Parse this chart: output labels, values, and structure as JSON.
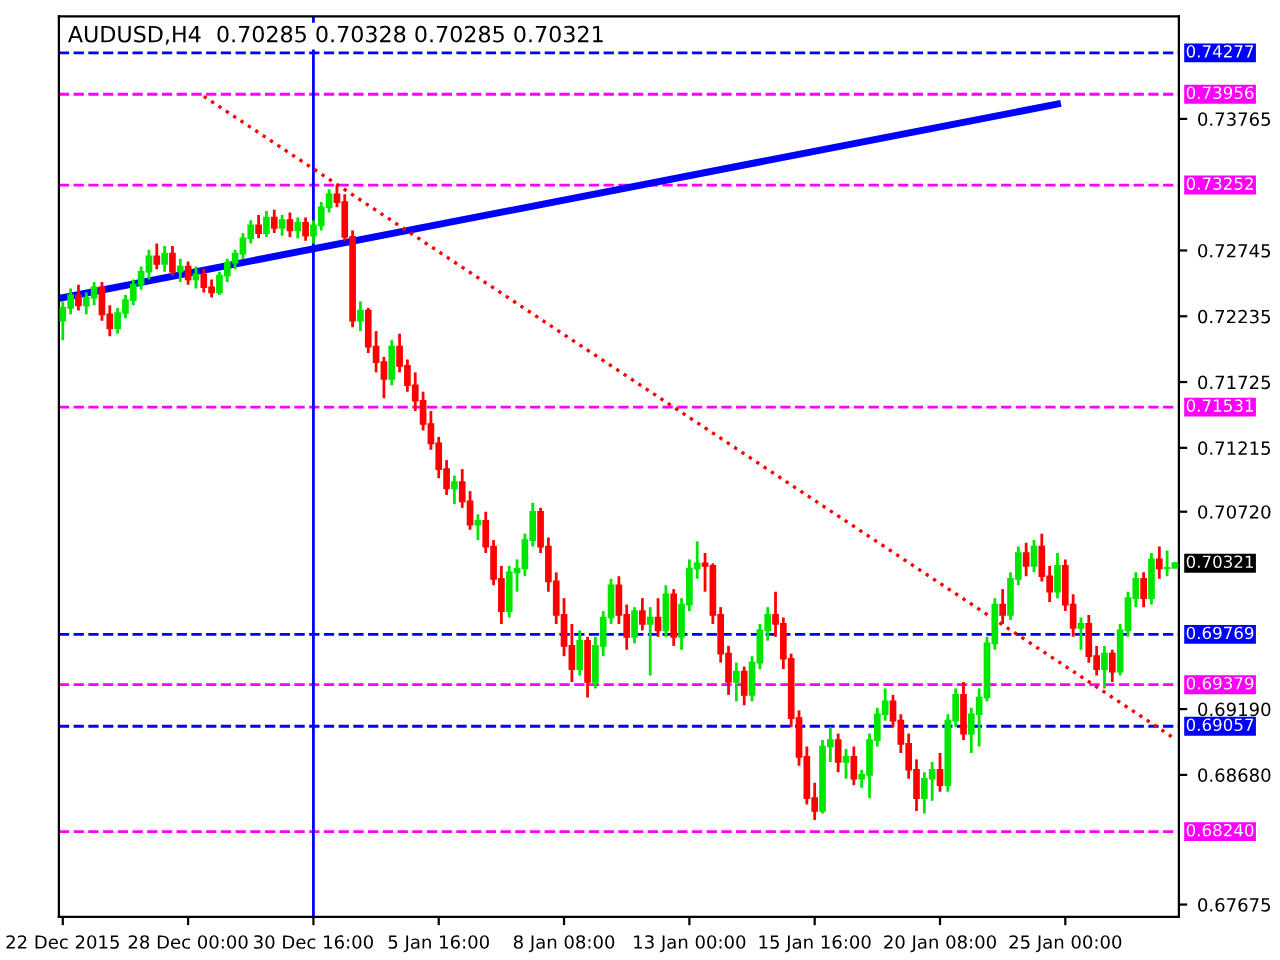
{
  "chart_data": {
    "type": "candlestick",
    "title": "AUDUSD,H4  0.70285 0.70328 0.70285 0.70321",
    "colors": [
      "#00e600",
      "#00e600",
      "#ff0000",
      "#00e600",
      "#00e600",
      "#ff0000",
      "#ff0000",
      "#00e600",
      "#00e600",
      "#00e600",
      "#00e600",
      "#00e600",
      "#ff0000",
      "#00e600",
      "#ff0000",
      "#00e600",
      "#ff0000",
      "#00e600",
      "#ff0000",
      "#ff0000",
      "#00e600",
      "#00e600",
      "#00e600",
      "#00e600",
      "#00e600",
      "#ff0000",
      "#00e600",
      "#ff0000",
      "#00e600",
      "#ff0000",
      "#00e600",
      "#ff0000",
      "#00e600",
      "#00e600",
      "#00e600",
      "#ff0000",
      "#ff0000",
      "#ff0000",
      "#00e600",
      "#ff0000",
      "#ff0000",
      "#ff0000",
      "#00e600",
      "#ff0000",
      "#ff0000",
      "#ff0000",
      "#ff0000",
      "#ff0000",
      "#ff0000",
      "#ff0000",
      "#00e600",
      "#ff0000",
      "#ff0000",
      "#00e600",
      "#ff0000",
      "#ff0000",
      "#ff0000",
      "#00e600",
      "#00e600",
      "#00e600",
      "#00e600",
      "#ff0000",
      "#ff0000",
      "#ff0000",
      "#ff0000",
      "#ff0000",
      "#00e600",
      "#ff0000",
      "#00e600",
      "#00e600",
      "#00e600",
      "#ff0000",
      "#ff0000",
      "#00e600",
      "#ff0000",
      "#00e600",
      "#ff0000",
      "#00e600",
      "#ff0000",
      "#00e600",
      "#00e600",
      "#00e600",
      "#ff0000",
      "#ff0000",
      "#ff0000",
      "#ff0000",
      "#00e600",
      "#ff0000",
      "#00e600",
      "#00e600",
      "#00e600",
      "#ff0000",
      "#ff0000",
      "#ff0000",
      "#ff0000",
      "#ff0000",
      "#ff0000",
      "#00e600",
      "#00e600",
      "#ff0000",
      "#00e600",
      "#ff0000",
      "#00e600",
      "#00e600",
      "#00e600",
      "#00e600",
      "#ff0000",
      "#ff0000",
      "#ff0000",
      "#ff0000",
      "#00e600",
      "#00e600",
      "#ff0000",
      "#00e600",
      "#00e600",
      "#ff0000",
      "#00e600",
      "#00e600",
      "#00e600",
      "#00e600",
      "#ff0000",
      "#00e600",
      "#00e600",
      "#ff0000",
      "#00e600",
      "#ff0000",
      "#ff0000",
      "#00e600",
      "#ff0000",
      "#ff0000",
      "#00e600",
      "#ff0000",
      "#ff0000",
      "#00e600",
      "#ff0000",
      "#00e600",
      "#00e600",
      "#00e600",
      "#ff0000",
      "#00e600",
      "#ff0000",
      "#00e600",
      "#00e600"
    ],
    "categories": [
      "22 Dec 2015",
      null,
      null,
      null,
      null,
      null,
      null,
      null,
      null,
      null,
      null,
      null,
      null,
      null,
      null,
      null,
      "28 Dec 00:00",
      null,
      null,
      null,
      null,
      null,
      null,
      null,
      null,
      null,
      null,
      null,
      null,
      null,
      null,
      null,
      "30 Dec 16:00",
      null,
      null,
      null,
      null,
      null,
      null,
      null,
      null,
      null,
      null,
      null,
      null,
      null,
      null,
      null,
      "5 Jan 16:00",
      null,
      null,
      null,
      null,
      null,
      null,
      null,
      null,
      null,
      null,
      null,
      null,
      null,
      null,
      null,
      "8 Jan 08:00",
      null,
      null,
      null,
      null,
      null,
      null,
      null,
      null,
      null,
      null,
      null,
      null,
      null,
      null,
      null,
      "13 Jan 00:00",
      null,
      null,
      null,
      null,
      null,
      null,
      null,
      null,
      null,
      null,
      null,
      null,
      null,
      null,
      null,
      "15 Jan 16:00",
      null,
      null,
      null,
      null,
      null,
      null,
      null,
      null,
      null,
      null,
      null,
      null,
      null,
      null,
      null,
      "20 Jan 08:00",
      null,
      null,
      null,
      null,
      null,
      null,
      null,
      null,
      null,
      null,
      null,
      null,
      null,
      null,
      null,
      "25 Jan 00:00",
      null,
      null,
      null,
      null,
      null,
      null,
      null,
      null,
      null,
      null,
      null,
      null,
      null,
      null
    ],
    "annotations": [
      "0.70321"
    ],
    "ohlc": [
      [
        0.722,
        0.7235,
        0.7205,
        0.723
      ],
      [
        0.723,
        0.7245,
        0.7225,
        0.724
      ],
      [
        0.724,
        0.7248,
        0.7228,
        0.7232
      ],
      [
        0.7232,
        0.7242,
        0.7225,
        0.7238
      ],
      [
        0.7238,
        0.725,
        0.7232,
        0.7246
      ],
      [
        0.7246,
        0.725,
        0.722,
        0.7225
      ],
      [
        0.7225,
        0.7232,
        0.7208,
        0.7214
      ],
      [
        0.7214,
        0.723,
        0.721,
        0.7226
      ],
      [
        0.7226,
        0.724,
        0.7222,
        0.7236
      ],
      [
        0.7236,
        0.7252,
        0.7232,
        0.7248
      ],
      [
        0.7248,
        0.7262,
        0.7244,
        0.7258
      ],
      [
        0.7258,
        0.7275,
        0.7252,
        0.727
      ],
      [
        0.727,
        0.728,
        0.726,
        0.7264
      ],
      [
        0.7264,
        0.7278,
        0.7258,
        0.7272
      ],
      [
        0.7272,
        0.7278,
        0.7255,
        0.7258
      ],
      [
        0.7258,
        0.7268,
        0.725,
        0.7262
      ],
      [
        0.7262,
        0.7266,
        0.7248,
        0.7252
      ],
      [
        0.7252,
        0.7262,
        0.7245,
        0.7256
      ],
      [
        0.7256,
        0.726,
        0.7242,
        0.7246
      ],
      [
        0.7246,
        0.7252,
        0.7238,
        0.7242
      ],
      [
        0.7242,
        0.7258,
        0.724,
        0.7255
      ],
      [
        0.7255,
        0.7268,
        0.725,
        0.7265
      ],
      [
        0.7265,
        0.7275,
        0.726,
        0.7272
      ],
      [
        0.7272,
        0.7288,
        0.7268,
        0.7284
      ],
      [
        0.7284,
        0.7298,
        0.728,
        0.7294
      ],
      [
        0.7294,
        0.7302,
        0.7284,
        0.7288
      ],
      [
        0.7288,
        0.7305,
        0.7285,
        0.73
      ],
      [
        0.73,
        0.7306,
        0.7288,
        0.7292
      ],
      [
        0.7292,
        0.7302,
        0.7286,
        0.7298
      ],
      [
        0.7298,
        0.7304,
        0.7285,
        0.729
      ],
      [
        0.729,
        0.73,
        0.7284,
        0.7296
      ],
      [
        0.7296,
        0.73,
        0.7282,
        0.7286
      ],
      [
        0.7286,
        0.7298,
        0.728,
        0.7294
      ],
      [
        0.7294,
        0.7312,
        0.729,
        0.7308
      ],
      [
        0.7308,
        0.7322,
        0.7304,
        0.7318
      ],
      [
        0.7318,
        0.7325,
        0.7308,
        0.7312
      ],
      [
        0.7312,
        0.7318,
        0.7282,
        0.7285
      ],
      [
        0.7285,
        0.729,
        0.7215,
        0.722
      ],
      [
        0.722,
        0.7235,
        0.7212,
        0.7228
      ],
      [
        0.7228,
        0.723,
        0.7195,
        0.72
      ],
      [
        0.72,
        0.7212,
        0.718,
        0.7188
      ],
      [
        0.7188,
        0.7192,
        0.716,
        0.7175
      ],
      [
        0.7175,
        0.7205,
        0.717,
        0.72
      ],
      [
        0.72,
        0.721,
        0.718,
        0.7185
      ],
      [
        0.7185,
        0.719,
        0.7165,
        0.717
      ],
      [
        0.717,
        0.718,
        0.715,
        0.7158
      ],
      [
        0.7158,
        0.7165,
        0.7135,
        0.714
      ],
      [
        0.714,
        0.715,
        0.712,
        0.7125
      ],
      [
        0.7125,
        0.713,
        0.7098,
        0.7105
      ],
      [
        0.7105,
        0.7112,
        0.7085,
        0.709
      ],
      [
        0.709,
        0.71,
        0.7078,
        0.7095
      ],
      [
        0.7095,
        0.7105,
        0.7075,
        0.708
      ],
      [
        0.708,
        0.7088,
        0.7058,
        0.7062
      ],
      [
        0.7062,
        0.707,
        0.705,
        0.7065
      ],
      [
        0.7065,
        0.7072,
        0.704,
        0.7045
      ],
      [
        0.7045,
        0.705,
        0.7015,
        0.702
      ],
      [
        0.702,
        0.703,
        0.6985,
        0.6995
      ],
      [
        0.6995,
        0.703,
        0.699,
        0.7025
      ],
      [
        0.7025,
        0.7035,
        0.701,
        0.7028
      ],
      [
        0.7028,
        0.7055,
        0.7022,
        0.705
      ],
      [
        0.705,
        0.7079,
        0.7045,
        0.7072
      ],
      [
        0.7072,
        0.7075,
        0.704,
        0.7045
      ],
      [
        0.7045,
        0.7052,
        0.701,
        0.7018
      ],
      [
        0.7018,
        0.7025,
        0.6985,
        0.6992
      ],
      [
        0.6992,
        0.7005,
        0.696,
        0.6968
      ],
      [
        0.6968,
        0.6985,
        0.694,
        0.695
      ],
      [
        0.695,
        0.698,
        0.6945,
        0.6972
      ],
      [
        0.6972,
        0.6975,
        0.6928,
        0.694
      ],
      [
        0.694,
        0.6975,
        0.6935,
        0.6968
      ],
      [
        0.6968,
        0.6995,
        0.696,
        0.699
      ],
      [
        0.699,
        0.702,
        0.6985,
        0.7015
      ],
      [
        0.7015,
        0.7022,
        0.6985,
        0.6992
      ],
      [
        0.6992,
        0.7,
        0.6965,
        0.6975
      ],
      [
        0.6975,
        0.6998,
        0.697,
        0.6995
      ],
      [
        0.6995,
        0.7005,
        0.698,
        0.6985
      ],
      [
        0.6985,
        0.6998,
        0.6945,
        0.699
      ],
      [
        0.699,
        0.7005,
        0.6975,
        0.698
      ],
      [
        0.698,
        0.7015,
        0.6975,
        0.7008
      ],
      [
        0.7008,
        0.7012,
        0.6968,
        0.6975
      ],
      [
        0.6975,
        0.7005,
        0.6965,
        0.7
      ],
      [
        0.7,
        0.7035,
        0.6995,
        0.7028
      ],
      [
        0.7028,
        0.7049,
        0.702,
        0.7032
      ],
      [
        0.7032,
        0.704,
        0.701,
        0.703
      ],
      [
        0.703,
        0.7032,
        0.6985,
        0.6992
      ],
      [
        0.6992,
        0.6998,
        0.6955,
        0.6962
      ],
      [
        0.6962,
        0.6968,
        0.693,
        0.694
      ],
      [
        0.694,
        0.6955,
        0.6925,
        0.6948
      ],
      [
        0.6948,
        0.6952,
        0.6922,
        0.693
      ],
      [
        0.693,
        0.696,
        0.6925,
        0.6955
      ],
      [
        0.6955,
        0.6985,
        0.695,
        0.698
      ],
      [
        0.698,
        0.6998,
        0.6972,
        0.6992
      ],
      [
        0.6992,
        0.701,
        0.6975,
        0.6985
      ],
      [
        0.6985,
        0.699,
        0.695,
        0.6958
      ],
      [
        0.6958,
        0.6962,
        0.6905,
        0.6912
      ],
      [
        0.6912,
        0.6918,
        0.6875,
        0.6882
      ],
      [
        0.6882,
        0.689,
        0.6845,
        0.685
      ],
      [
        0.685,
        0.6862,
        0.6833,
        0.684
      ],
      [
        0.684,
        0.6895,
        0.6838,
        0.689
      ],
      [
        0.689,
        0.6905,
        0.6878,
        0.6895
      ],
      [
        0.6895,
        0.69,
        0.687,
        0.6878
      ],
      [
        0.6878,
        0.6888,
        0.6865,
        0.6882
      ],
      [
        0.6882,
        0.689,
        0.686,
        0.6865
      ],
      [
        0.6865,
        0.6872,
        0.6858,
        0.6868
      ],
      [
        0.6868,
        0.69,
        0.685,
        0.6895
      ],
      [
        0.6895,
        0.692,
        0.689,
        0.6915
      ],
      [
        0.6915,
        0.6935,
        0.691,
        0.6925
      ],
      [
        0.6925,
        0.693,
        0.6905,
        0.691
      ],
      [
        0.691,
        0.6915,
        0.6885,
        0.6892
      ],
      [
        0.6892,
        0.69,
        0.6865,
        0.6872
      ],
      [
        0.6872,
        0.688,
        0.684,
        0.685
      ],
      [
        0.685,
        0.687,
        0.6838,
        0.6865
      ],
      [
        0.6865,
        0.6878,
        0.6848,
        0.6872
      ],
      [
        0.6872,
        0.6885,
        0.6855,
        0.686
      ],
      [
        0.686,
        0.6915,
        0.6855,
        0.691
      ],
      [
        0.691,
        0.6935,
        0.6905,
        0.693
      ],
      [
        0.693,
        0.694,
        0.6895,
        0.69
      ],
      [
        0.69,
        0.692,
        0.6885,
        0.6915
      ],
      [
        0.6915,
        0.6935,
        0.689,
        0.6928
      ],
      [
        0.6928,
        0.6975,
        0.6925,
        0.697
      ],
      [
        0.697,
        0.7005,
        0.6965,
        0.7
      ],
      [
        0.7,
        0.7012,
        0.6985,
        0.6992
      ],
      [
        0.6992,
        0.7025,
        0.6988,
        0.702
      ],
      [
        0.702,
        0.7045,
        0.7015,
        0.704
      ],
      [
        0.704,
        0.7048,
        0.7022,
        0.703
      ],
      [
        0.703,
        0.705,
        0.7025,
        0.7045
      ],
      [
        0.7045,
        0.7055,
        0.7018,
        0.7022
      ],
      [
        0.7022,
        0.703,
        0.7002,
        0.701
      ],
      [
        0.701,
        0.704,
        0.7005,
        0.703
      ],
      [
        0.703,
        0.7035,
        0.6995,
        0.7
      ],
      [
        0.7,
        0.7008,
        0.6975,
        0.6982
      ],
      [
        0.6982,
        0.699,
        0.6965,
        0.6985
      ],
      [
        0.6985,
        0.6992,
        0.6955,
        0.696
      ],
      [
        0.696,
        0.6968,
        0.6945,
        0.695
      ],
      [
        0.695,
        0.6968,
        0.6935,
        0.6962
      ],
      [
        0.6962,
        0.6965,
        0.694,
        0.6948
      ],
      [
        0.6948,
        0.6985,
        0.6945,
        0.698
      ],
      [
        0.698,
        0.701,
        0.6975,
        0.7005
      ],
      [
        0.7005,
        0.7025,
        0.6998,
        0.702
      ],
      [
        0.702,
        0.7025,
        0.6998,
        0.7005
      ],
      [
        0.7005,
        0.704,
        0.7,
        0.7035
      ],
      [
        0.7035,
        0.7045,
        0.702,
        0.7028
      ],
      [
        0.7028,
        0.7042,
        0.7022,
        0.70285
      ],
      [
        0.70285,
        0.70328,
        0.70285,
        0.70321
      ]
    ],
    "series": [
      {
        "type": "line",
        "color": "#0000ff",
        "values": [
          0.7238,
          null,
          null,
          null,
          null,
          null,
          null,
          null,
          null,
          null,
          null,
          null,
          null,
          null,
          null,
          null,
          null,
          null,
          null,
          null,
          null,
          null,
          null,
          null,
          null,
          null,
          null,
          null,
          null,
          null,
          null,
          null,
          null,
          null,
          null,
          null,
          null,
          null,
          null,
          null,
          null,
          null,
          null,
          null,
          null,
          null,
          null,
          null,
          null,
          null,
          null,
          null,
          null,
          null,
          null,
          null,
          null,
          null,
          null,
          null,
          null,
          null,
          null,
          null,
          null,
          null,
          null,
          null,
          null,
          null,
          null,
          null,
          null,
          null,
          null,
          null,
          null,
          null,
          null,
          null,
          null,
          null,
          null,
          null,
          null,
          null,
          null,
          null,
          null,
          null,
          null,
          null,
          null,
          null,
          null,
          null,
          null,
          null,
          null,
          null,
          null,
          null,
          null,
          null,
          null,
          null,
          null,
          null,
          null,
          null,
          null,
          null,
          null,
          null,
          null,
          null,
          null,
          null,
          null,
          null,
          null,
          null,
          null,
          null,
          null,
          null,
          null,
          0.7388,
          null,
          null,
          null,
          null,
          null,
          null,
          null,
          null,
          null,
          null,
          null,
          null,
          null,
          null,
          null
        ]
      },
      {
        "type": "line",
        "color": "#ff0000",
        "line_style": "dotted",
        "values": [
          null,
          null,
          null,
          null,
          null,
          null,
          null,
          null,
          null,
          null,
          null,
          null,
          null,
          null,
          null,
          null,
          null,
          null,
          0.7394,
          null,
          null,
          null,
          null,
          null,
          null,
          null,
          null,
          null,
          null,
          null,
          null,
          null,
          null,
          null,
          null,
          null,
          null,
          null,
          null,
          null,
          null,
          null,
          null,
          null,
          null,
          null,
          null,
          null,
          null,
          null,
          null,
          null,
          null,
          null,
          null,
          null,
          null,
          null,
          null,
          null,
          null,
          null,
          null,
          null,
          null,
          null,
          null,
          null,
          null,
          null,
          null,
          null,
          null,
          null,
          null,
          null,
          null,
          null,
          null,
          null,
          null,
          null,
          null,
          null,
          null,
          null,
          null,
          null,
          null,
          null,
          null,
          null,
          null,
          null,
          null,
          null,
          null,
          null,
          null,
          null,
          null,
          null,
          null,
          null,
          null,
          null,
          null,
          null,
          null,
          null,
          null,
          null,
          null,
          null,
          null,
          null,
          null,
          null,
          null,
          null,
          null,
          null,
          null,
          null,
          null,
          null,
          null,
          null,
          null,
          null,
          null,
          null,
          null,
          null,
          null,
          null,
          null,
          null,
          null,
          null,
          null,
          null,
          0.6896
        ]
      }
    ],
    "ylim": [
      0.6758,
      0.7456
    ],
    "yticks": [
      {
        "value": 0.73765,
        "label": "0.73765"
      },
      {
        "value": 0.72745,
        "label": "0.72745"
      },
      {
        "value": 0.72235,
        "label": "0.72235"
      },
      {
        "value": 0.71725,
        "label": "0.71725"
      },
      {
        "value": 0.71215,
        "label": "0.71215"
      },
      {
        "value": 0.7072,
        "label": "0.70720"
      },
      {
        "value": 0.6919,
        "label": "0.69190"
      },
      {
        "value": 0.6868,
        "label": "0.68680"
      },
      {
        "value": 0.67675,
        "label": "0.67675"
      }
    ],
    "ref_lines": [
      {
        "axis": "y",
        "value": 0.74277,
        "label": "0.74277",
        "color": "#0000ff",
        "line_style": "dashed"
      },
      {
        "axis": "y",
        "value": 0.73956,
        "label": "0.73956",
        "color": "#ff00ff",
        "line_style": "dashed"
      },
      {
        "axis": "y",
        "value": 0.73252,
        "label": "0.73252",
        "color": "#ff00ff",
        "line_style": "dashed"
      },
      {
        "axis": "y",
        "value": 0.71531,
        "label": "0.71531",
        "color": "#ff00ff",
        "line_style": "dashed"
      },
      {
        "axis": "y",
        "value": 0.69769,
        "label": "0.69769",
        "color": "#0000ff",
        "line_style": "dashed"
      },
      {
        "axis": "y",
        "value": 0.69379,
        "label": "0.69379",
        "color": "#ff00ff",
        "line_style": "dashed"
      },
      {
        "axis": "y",
        "value": 0.69057,
        "label": "0.69057",
        "color": "#0000ff",
        "line_style": "dashed"
      },
      {
        "axis": "y",
        "value": 0.6824,
        "label": "0.68240",
        "color": "#ff00ff",
        "line_style": "dashed"
      },
      {
        "axis": "x",
        "value": "30 Dec 16:00",
        "label": null,
        "color": "#0000ff",
        "line_style": "solid"
      }
    ],
    "grid": false,
    "legend": false
  }
}
